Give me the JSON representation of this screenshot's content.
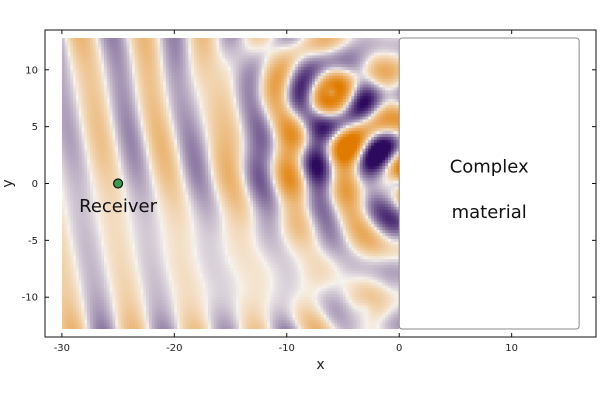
{
  "chart_data": {
    "type": "heatmap",
    "title": "",
    "xlabel": "x",
    "ylabel": "y",
    "xlim": [
      -31.5,
      17.5
    ],
    "ylim": [
      -13.5,
      13.5
    ],
    "field_extent": {
      "x": [
        -30,
        0
      ],
      "y": [
        -12.8,
        12.8
      ]
    },
    "x_ticks": [
      -30,
      -20,
      -10,
      0,
      10
    ],
    "x_tick_labels": [
      "-30",
      "-20",
      "-10",
      "0",
      "10"
    ],
    "y_ticks": [
      10,
      5,
      0,
      -5,
      -10
    ],
    "y_tick_labels": [
      "10",
      "5",
      "0",
      "-5",
      "-10"
    ],
    "grid": false,
    "colormap": {
      "negative": "#2d0a5e",
      "zero": "#f7f3ee",
      "positive": "#e07b00"
    },
    "material_region": {
      "x": [
        0,
        16
      ],
      "y": [
        -12.8,
        12.8
      ]
    },
    "receiver": {
      "x": -25,
      "y": 0,
      "label": "Receiver"
    },
    "material_label": [
      "Complex",
      "material"
    ]
  },
  "colors": {
    "receiver_fill": "#3a9a50",
    "material_fill": "#ffffff",
    "material_stroke": "#888888"
  }
}
